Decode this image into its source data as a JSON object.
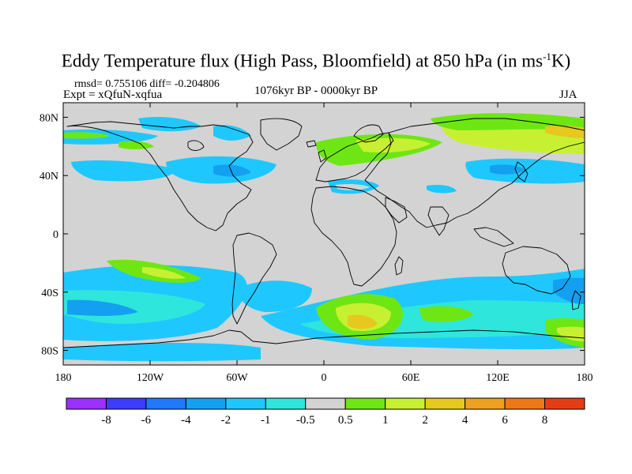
{
  "title": {
    "main": "Eddy Temperature flux (High Pass, Bloomfield) at 850 hPa (in ms",
    "sup": "-1",
    "unit_end": "K)"
  },
  "stats": {
    "rmsd_diff": "rmsd= 0.755106 diff= -0.204806",
    "expt": "Expt = xQfuN-xqfua",
    "period": "1076kyr BP - 0000kyr BP",
    "season": "JJA"
  },
  "axes": {
    "lat_ticks": [
      "80N",
      "40N",
      "0",
      "40S",
      "80S"
    ],
    "lon_ticks": [
      "180",
      "120W",
      "60W",
      "0",
      "60E",
      "120E",
      "180"
    ]
  },
  "colorbar": {
    "labels": [
      "-8",
      "-6",
      "-4",
      "-2",
      "-1",
      "-0.5",
      "0.5",
      "1",
      "2",
      "4",
      "6",
      "8"
    ],
    "colors": [
      "#9b30ff",
      "#3c3cff",
      "#1f78ff",
      "#14a0f0",
      "#1ec8ff",
      "#2ee6dc",
      "#d3d3d3",
      "#6ee614",
      "#c8f032",
      "#e6c81e",
      "#eea01e",
      "#ee7814",
      "#e63c14"
    ]
  },
  "colors": {
    "land_gray": "#d3d3d3",
    "coast": "#000000"
  }
}
